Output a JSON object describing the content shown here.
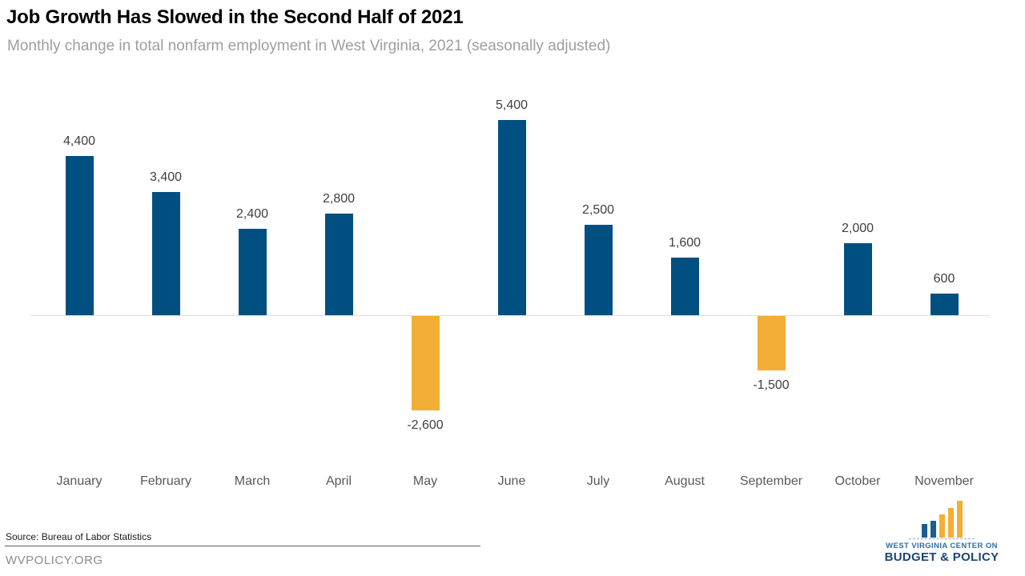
{
  "chart_data": {
    "type": "bar",
    "title": "Job Growth Has Slowed in the Second Half of 2021",
    "subtitle": "Monthly change in total nonfarm employment in West Virginia, 2021 (seasonally adjusted)",
    "categories": [
      "January",
      "February",
      "March",
      "April",
      "May",
      "June",
      "July",
      "August",
      "September",
      "October",
      "November"
    ],
    "values": [
      4400,
      3400,
      2400,
      2800,
      -2600,
      5400,
      2500,
      1600,
      -1500,
      2000,
      600
    ],
    "value_labels": [
      "4,400",
      "3,400",
      "2,400",
      "2,800",
      "-2,600",
      "5,400",
      "2,500",
      "1,600",
      "-1,500",
      "2,000",
      "600"
    ],
    "xlabel": "",
    "ylabel": "",
    "ylim": [
      -2600,
      5400
    ],
    "grid": false,
    "legend": "none",
    "bar_colors": {
      "positive": "#004F81",
      "negative": "#F2AE35"
    },
    "value_label_color": "#404040",
    "axis_label_color": "#595959",
    "zero_line_color": "#BFBFBF"
  },
  "footer": {
    "source": "Source: Bureau of Labor Statistics",
    "website": "WVPOLICY.ORG"
  },
  "logo": {
    "line1": "WEST VIRGINIA CENTER ON",
    "line2": "BUDGET & POLICY",
    "line1_color": "#2E6DA4",
    "line2_color": "#1C4670",
    "bar_blue": "#1D5C90",
    "bar_gold": "#F2AE35"
  }
}
